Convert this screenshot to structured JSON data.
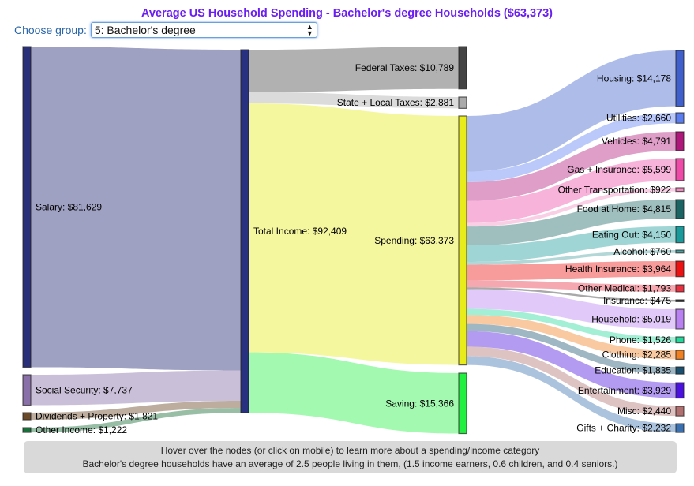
{
  "title": "Average US Household Spending - Bachelor's degree Households ($63,373)",
  "chooser": {
    "label": "Choose group:",
    "selected": "5: Bachelor's degree"
  },
  "info": {
    "line1": "Hover over the nodes (or click on mobile) to learn more about a spending/income category",
    "line2": "Bachelor's degree households have an average of 2.5 people living in them, (1.5 income earners, 0.6 children, and 0.4 seniors.)"
  },
  "chart_data": {
    "type": "sankey",
    "nodes": [
      {
        "id": "salary",
        "label": "Salary: $81,629",
        "value": 81629,
        "color": "#2a2f7a"
      },
      {
        "id": "ss",
        "label": "Social Security: $7,737",
        "value": 7737,
        "color": "#8a70a8"
      },
      {
        "id": "div",
        "label": "Dividends + Property: $1,821",
        "value": 1821,
        "color": "#6b4a2a"
      },
      {
        "id": "oi",
        "label": "Other Income: $1,222",
        "value": 1222,
        "color": "#1a6e3a"
      },
      {
        "id": "total",
        "label": "Total Income: $92,409",
        "value": 92409,
        "color": "#283080"
      },
      {
        "id": "fed",
        "label": "Federal Taxes: $10,789",
        "value": 10789,
        "color": "#444444"
      },
      {
        "id": "state",
        "label": "State + Local Taxes: $2,881",
        "value": 2881,
        "color": "#aaaaaa"
      },
      {
        "id": "spend",
        "label": "Spending: $63,373",
        "value": 63373,
        "color": "#e8ec1a"
      },
      {
        "id": "save",
        "label": "Saving: $15,366",
        "value": 15366,
        "color": "#22f040"
      },
      {
        "id": "housing",
        "label": "Housing: $14,178",
        "value": 14178,
        "color": "#3f5fcc"
      },
      {
        "id": "util",
        "label": "Utilities: $2,660",
        "value": 2660,
        "color": "#5a7ef0"
      },
      {
        "id": "veh",
        "label": "Vehicles: $4,791",
        "value": 4791,
        "color": "#b0177a"
      },
      {
        "id": "gas",
        "label": "Gas + Insurance: $5,599",
        "value": 5599,
        "color": "#ef4aa8"
      },
      {
        "id": "otr",
        "label": "Other Transportation: $922",
        "value": 922,
        "color": "#f08cc0"
      },
      {
        "id": "food",
        "label": "Food at Home: $4,815",
        "value": 4815,
        "color": "#1a6464"
      },
      {
        "id": "eat",
        "label": "Eating Out: $4,150",
        "value": 4150,
        "color": "#1a9a9a"
      },
      {
        "id": "alc",
        "label": "Alcohol: $760",
        "value": 760,
        "color": "#4aa0a0"
      },
      {
        "id": "hi",
        "label": "Health Insurance: $3,964",
        "value": 3964,
        "color": "#ee1111"
      },
      {
        "id": "om",
        "label": "Other Medical: $1,793",
        "value": 1793,
        "color": "#e83040"
      },
      {
        "id": "ins",
        "label": "Insurance: $475",
        "value": 475,
        "color": "#333333"
      },
      {
        "id": "hh",
        "label": "Household: $5,019",
        "value": 5019,
        "color": "#b880f0"
      },
      {
        "id": "phone",
        "label": "Phone: $1,526",
        "value": 1526,
        "color": "#22d89a"
      },
      {
        "id": "cloth",
        "label": "Clothing: $2,285",
        "value": 2285,
        "color": "#f08020"
      },
      {
        "id": "edu",
        "label": "Education: $1,835",
        "value": 1835,
        "color": "#1a5070"
      },
      {
        "id": "ent",
        "label": "Entertainment: $3,929",
        "value": 3929,
        "color": "#4a10e0"
      },
      {
        "id": "misc",
        "label": "Misc: $2,440",
        "value": 2440,
        "color": "#b07070"
      },
      {
        "id": "gifts",
        "label": "Gifts + Charity: $2,232",
        "value": 2232,
        "color": "#3a70b0"
      }
    ],
    "links": [
      {
        "source": "salary",
        "target": "total",
        "value": 81629
      },
      {
        "source": "ss",
        "target": "total",
        "value": 7737
      },
      {
        "source": "div",
        "target": "total",
        "value": 1821
      },
      {
        "source": "oi",
        "target": "total",
        "value": 1222
      },
      {
        "source": "total",
        "target": "fed",
        "value": 10789
      },
      {
        "source": "total",
        "target": "state",
        "value": 2881
      },
      {
        "source": "total",
        "target": "spend",
        "value": 63373
      },
      {
        "source": "total",
        "target": "save",
        "value": 15366
      },
      {
        "source": "spend",
        "target": "housing",
        "value": 14178
      },
      {
        "source": "spend",
        "target": "util",
        "value": 2660
      },
      {
        "source": "spend",
        "target": "veh",
        "value": 4791
      },
      {
        "source": "spend",
        "target": "gas",
        "value": 5599
      },
      {
        "source": "spend",
        "target": "otr",
        "value": 922
      },
      {
        "source": "spend",
        "target": "food",
        "value": 4815
      },
      {
        "source": "spend",
        "target": "eat",
        "value": 4150
      },
      {
        "source": "spend",
        "target": "alc",
        "value": 760
      },
      {
        "source": "spend",
        "target": "hi",
        "value": 3964
      },
      {
        "source": "spend",
        "target": "om",
        "value": 1793
      },
      {
        "source": "spend",
        "target": "ins",
        "value": 475
      },
      {
        "source": "spend",
        "target": "hh",
        "value": 5019
      },
      {
        "source": "spend",
        "target": "phone",
        "value": 1526
      },
      {
        "source": "spend",
        "target": "cloth",
        "value": 2285
      },
      {
        "source": "spend",
        "target": "edu",
        "value": 1835
      },
      {
        "source": "spend",
        "target": "ent",
        "value": 3929
      },
      {
        "source": "spend",
        "target": "misc",
        "value": 2440
      },
      {
        "source": "spend",
        "target": "gifts",
        "value": 2232
      }
    ]
  }
}
